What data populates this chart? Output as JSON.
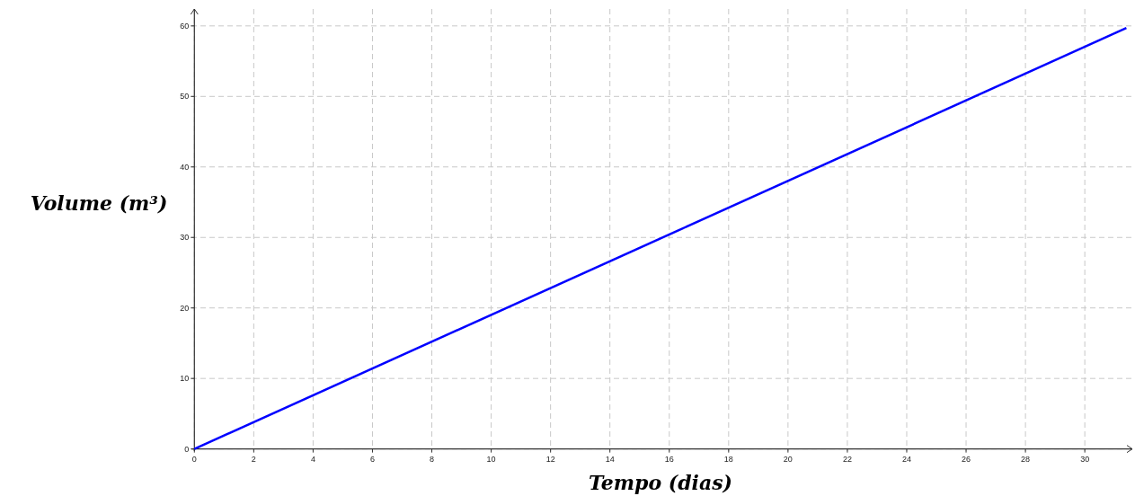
{
  "chart_data": {
    "type": "line",
    "xlabel": "Tempo (dias)",
    "ylabel": "Volume (m³)",
    "series": [
      {
        "color": "#0000ff",
        "x": [
          0,
          31.4
        ],
        "values": [
          0,
          59.7
        ]
      }
    ],
    "xlim": [
      -0.1,
      31.6
    ],
    "ylim": [
      -0.3,
      62.4
    ],
    "xticks": [
      0,
      2,
      4,
      6,
      8,
      10,
      12,
      14,
      16,
      18,
      20,
      22,
      24,
      26,
      28,
      30
    ],
    "yticks": [
      0,
      10,
      20,
      30,
      40,
      50,
      60
    ],
    "grid": true,
    "line_style": "solid",
    "marker": "none"
  }
}
